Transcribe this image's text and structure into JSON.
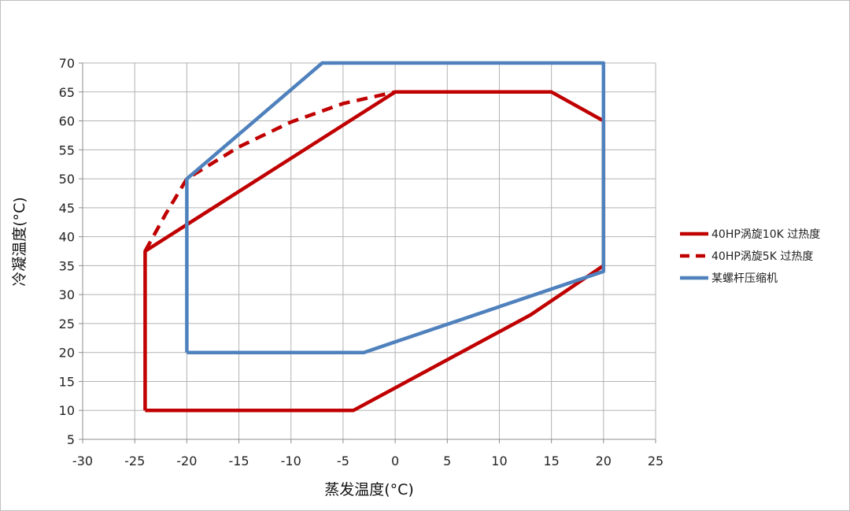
{
  "chart_data": {
    "type": "line",
    "title": "",
    "xlabel": "蒸发温度(°C)",
    "ylabel": "冷凝温度(°C)",
    "xlim": [
      -30,
      25
    ],
    "ylim": [
      5,
      70
    ],
    "xticks": [
      -30,
      -25,
      -20,
      -15,
      -10,
      -5,
      0,
      5,
      10,
      15,
      20,
      25
    ],
    "yticks": [
      5,
      10,
      15,
      20,
      25,
      30,
      35,
      40,
      45,
      50,
      55,
      60,
      65,
      70
    ],
    "grid": true,
    "legend_position": "right",
    "series": [
      {
        "name": "40HP涡旋10K 过热度",
        "color": "#c00000",
        "style": "solid",
        "points": [
          [
            -24,
            10
          ],
          [
            -4,
            10
          ],
          [
            13,
            26.5
          ],
          [
            20,
            35
          ],
          [
            20,
            60
          ],
          [
            15,
            65
          ],
          [
            0,
            65
          ],
          [
            -24,
            37.5
          ],
          [
            -24,
            10
          ]
        ]
      },
      {
        "name": "40HP涡旋5K 过热度",
        "color": "#c00000",
        "style": "dashed",
        "points": [
          [
            -24,
            37.5
          ],
          [
            -22,
            44
          ],
          [
            -20,
            50
          ],
          [
            -15,
            55.5
          ],
          [
            -10,
            59.8
          ],
          [
            -5,
            63
          ],
          [
            0,
            65
          ]
        ]
      },
      {
        "name": "某螺杆压缩机",
        "color": "#4f81bd",
        "style": "solid",
        "points": [
          [
            -20,
            20
          ],
          [
            -3,
            20
          ],
          [
            20,
            34
          ],
          [
            20,
            70
          ],
          [
            -7,
            70
          ],
          [
            -20,
            50
          ],
          [
            -20,
            20
          ]
        ]
      }
    ]
  }
}
